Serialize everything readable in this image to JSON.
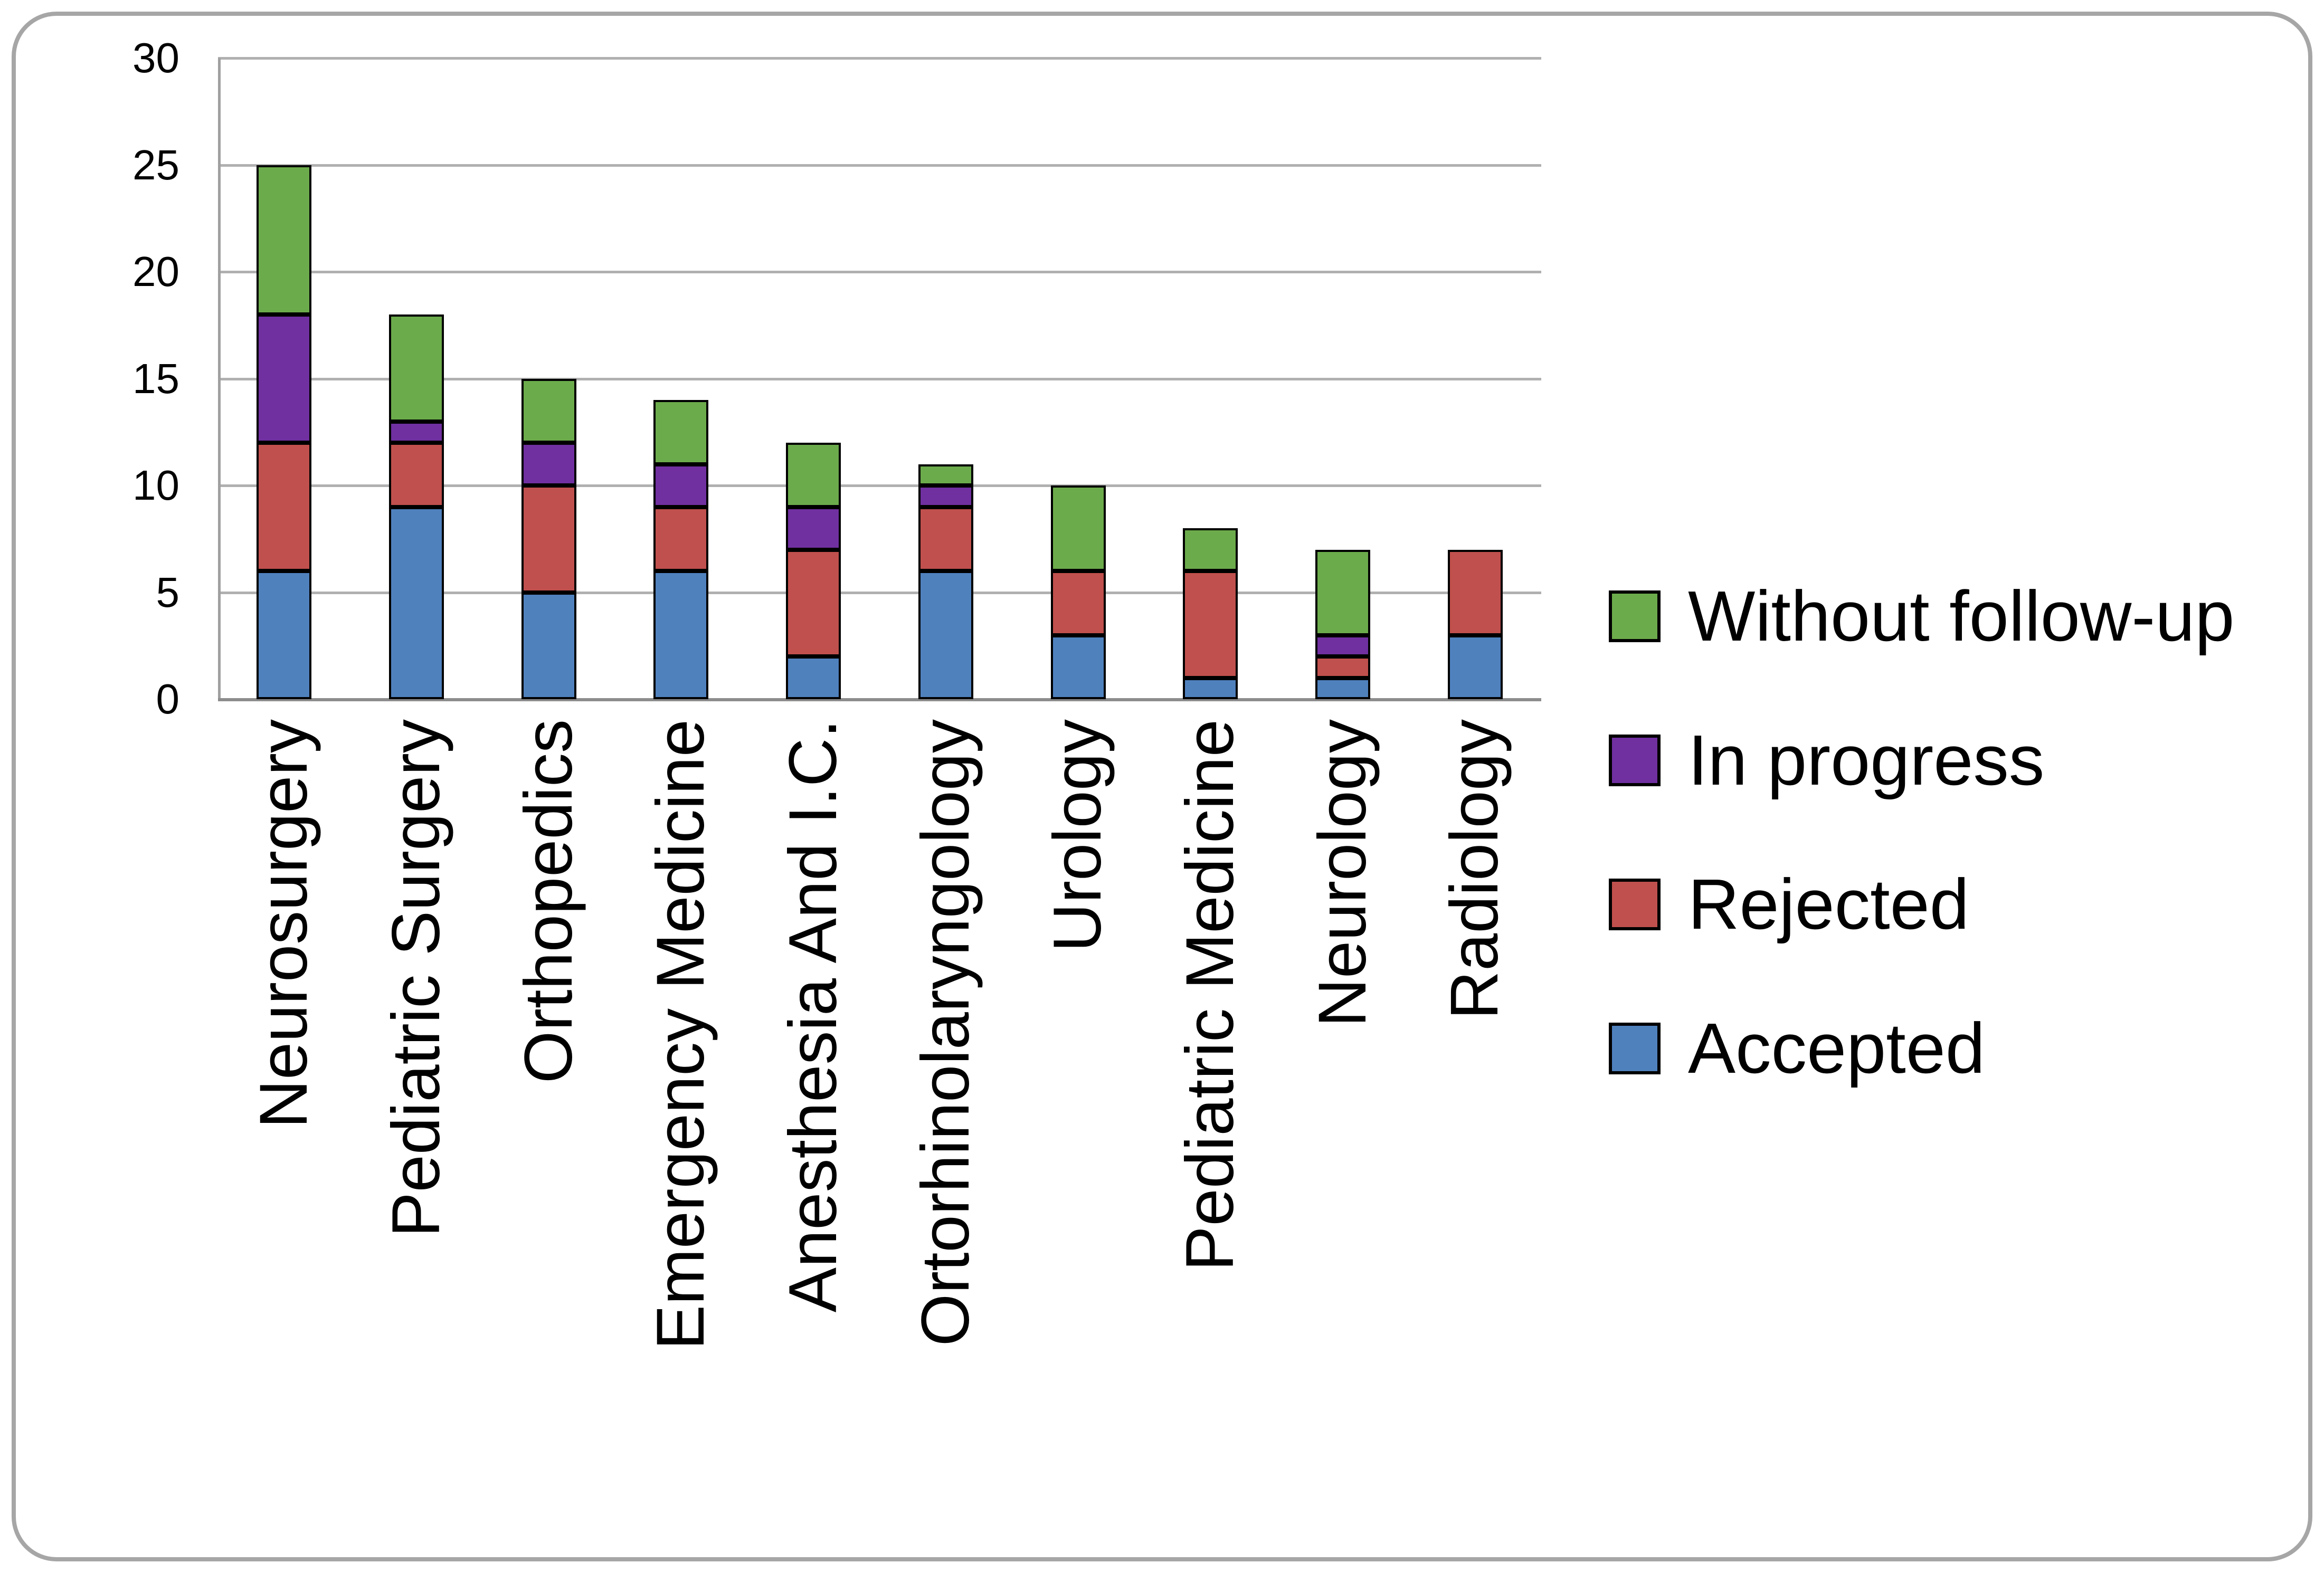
{
  "chart_data": {
    "type": "bar",
    "stacked": true,
    "title": "",
    "xlabel": "",
    "ylabel": "",
    "categories": [
      "Neurosurgery",
      "Pediatric Surgery",
      "Orthopedics",
      "Emergency Medicine",
      "Anesthesia And I.C.",
      "Ortorhinolaryngology",
      "Urology",
      "Pediatric Medicine",
      "Neurology",
      "Radiology"
    ],
    "series": [
      {
        "name": "Accepted",
        "color": "#4F81BD",
        "values": [
          6,
          9,
          5,
          6,
          2,
          6,
          3,
          1,
          1,
          3
        ]
      },
      {
        "name": "Rejected",
        "color": "#C0504D",
        "values": [
          6,
          3,
          5,
          3,
          5,
          3,
          3,
          5,
          1,
          4
        ]
      },
      {
        "name": "In progress",
        "color": "#7030A0",
        "values": [
          6,
          1,
          2,
          2,
          2,
          1,
          0,
          0,
          1,
          0
        ]
      },
      {
        "name": "Without follow-up",
        "color": "#6CAB4B",
        "values": [
          7,
          5,
          3,
          3,
          3,
          1,
          4,
          2,
          4,
          0
        ]
      }
    ],
    "totals": [
      25,
      18,
      15,
      14,
      12,
      11,
      10,
      8,
      7,
      7
    ],
    "stack_order_top_to_bottom": [
      "Without follow-up",
      "In progress",
      "Rejected",
      "Accepted"
    ],
    "legend_order": [
      "Without follow-up",
      "In progress",
      "Rejected",
      "Accepted"
    ],
    "legend_position": "right",
    "ylim": [
      0,
      30
    ],
    "yticks": [
      0,
      5,
      10,
      15,
      20,
      25,
      30
    ],
    "grid": true
  },
  "styles": {
    "gridline_color": "#b0b0b0",
    "axis_line_color": "#8c8c8c",
    "y_axis_line_color": "#a0a0a0",
    "bar_border_color": "#000000",
    "frame_border_color": "#a6a6a6",
    "text_color": "#000000"
  }
}
